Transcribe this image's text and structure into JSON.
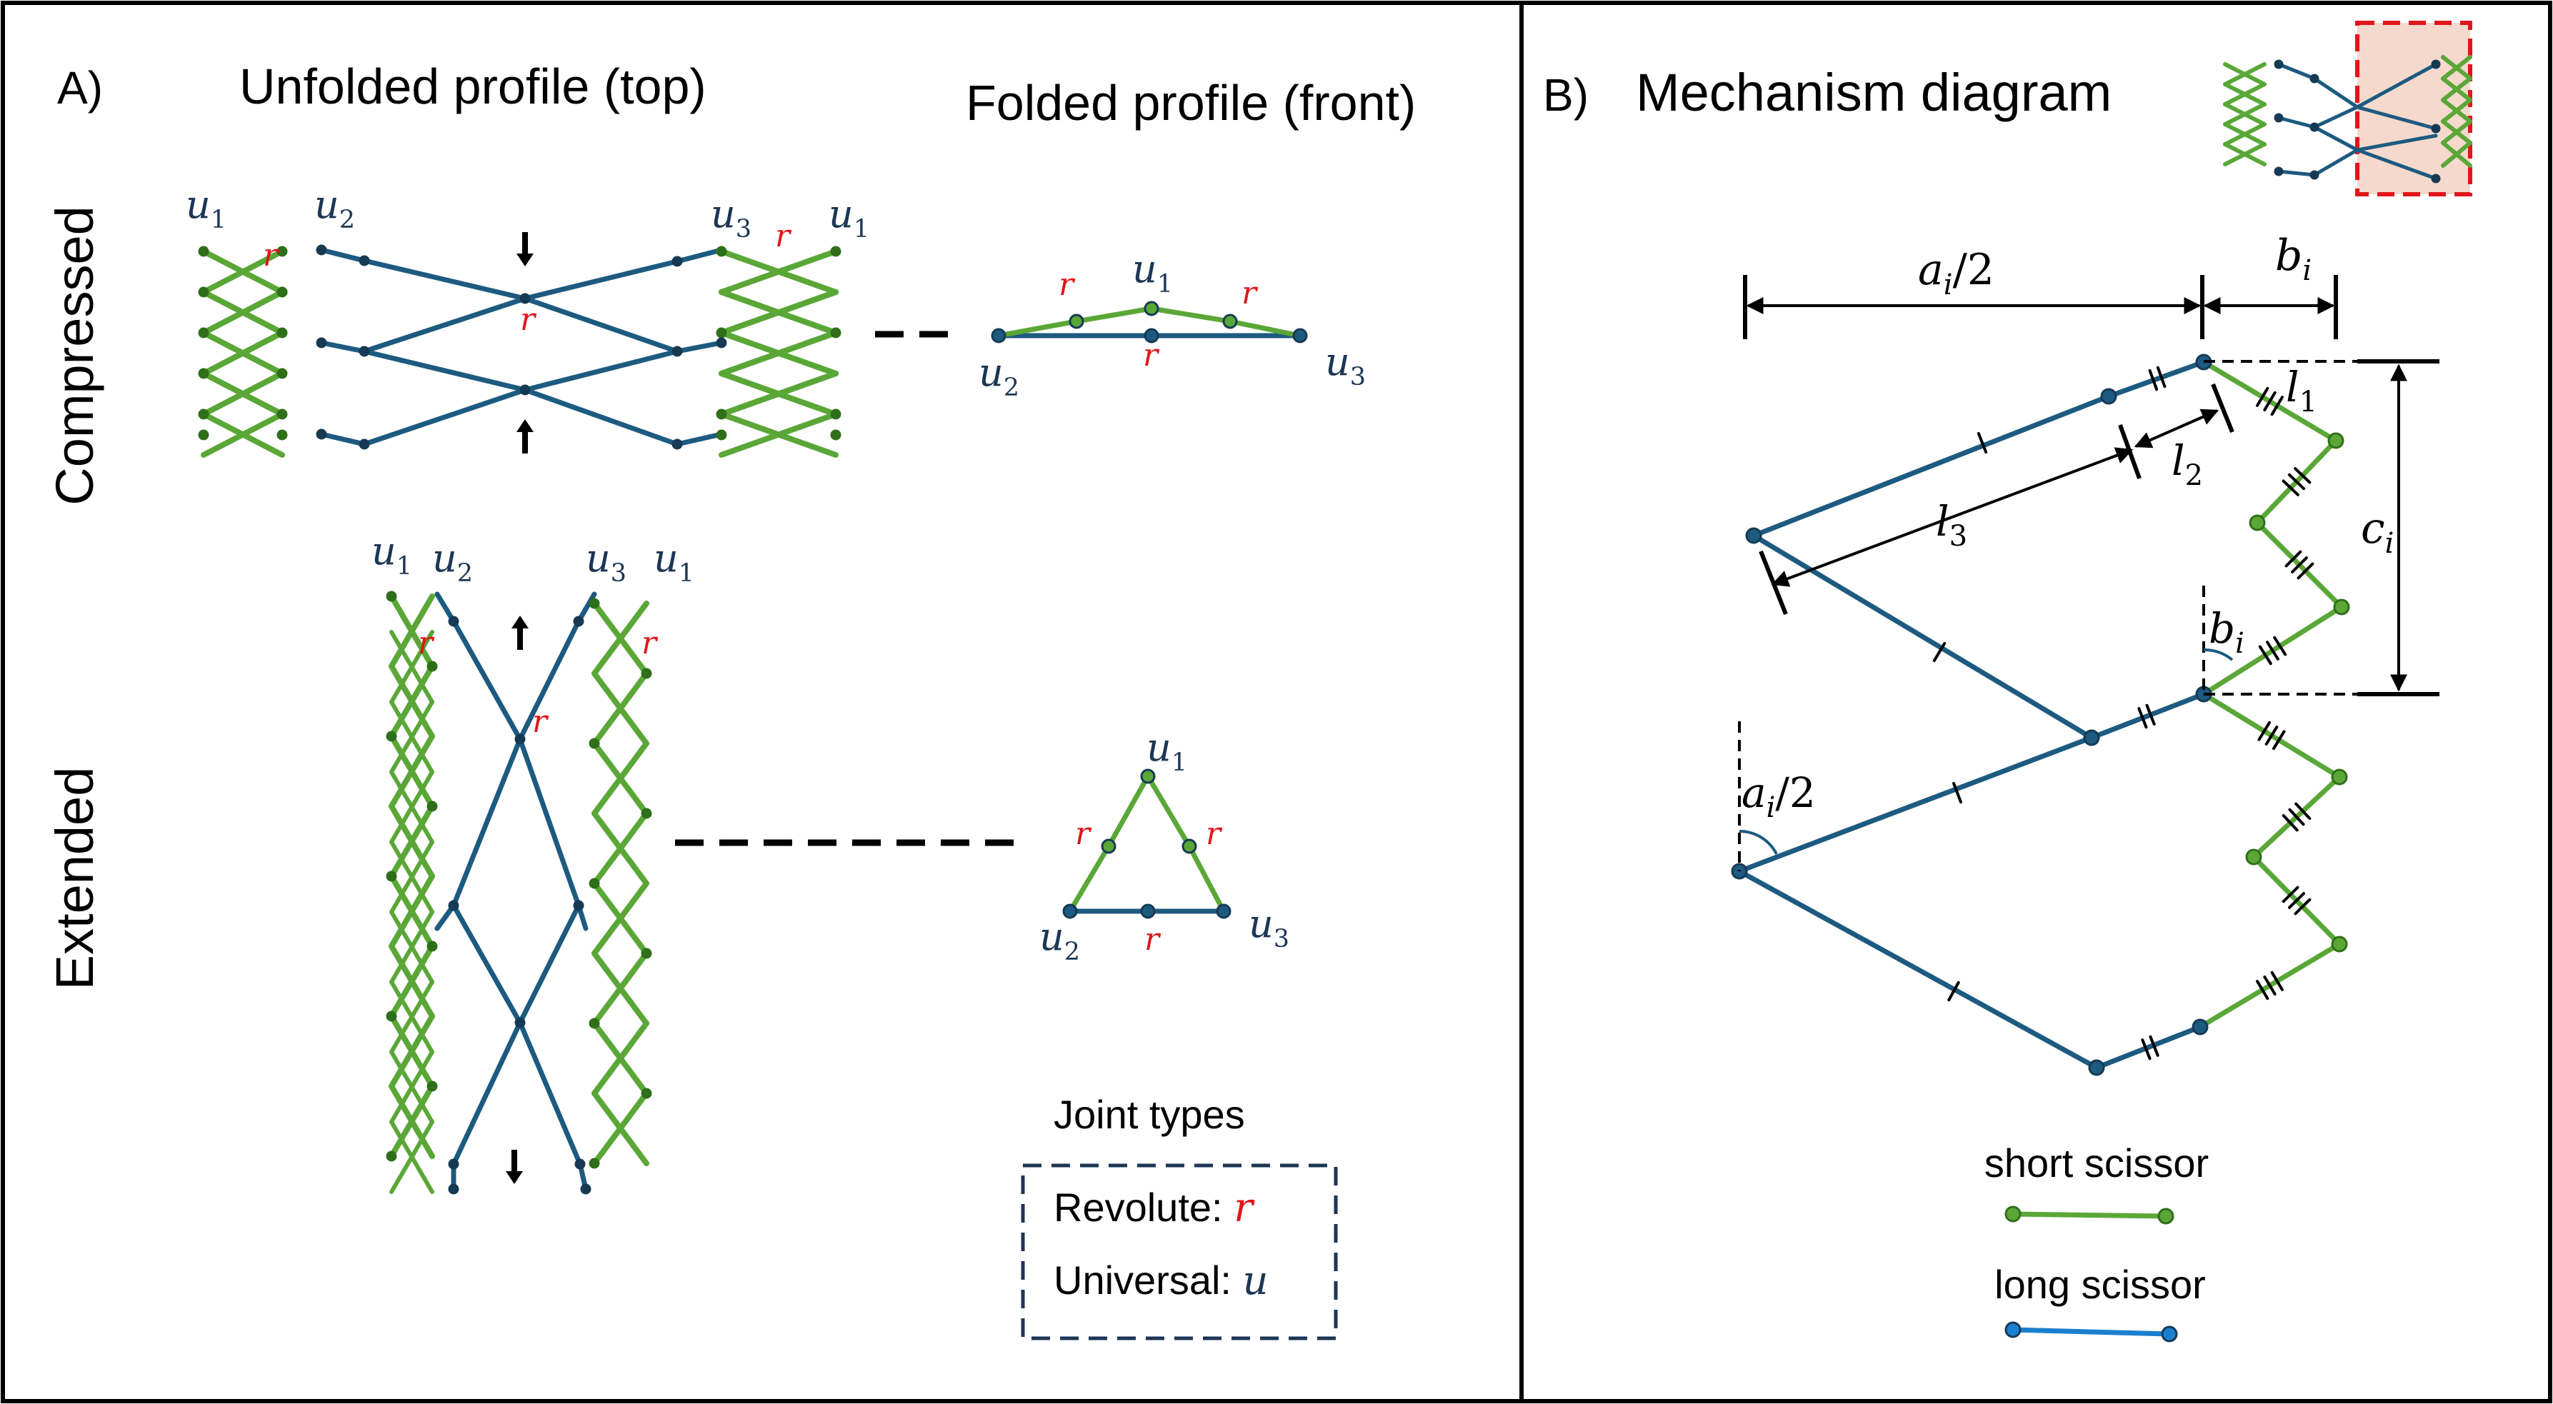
{
  "colors": {
    "green": "#5aa737",
    "green_dark": "#2f6f1a",
    "blue": "#1d5a80",
    "blue_dark": "#163a54",
    "red": "#e0161a",
    "highlight_fill": "#f5d9cd",
    "black": "#000000",
    "label_blue": "#1c3655"
  },
  "panel_a": {
    "letter": "A)",
    "unfolded_title": "Unfolded profile (top)",
    "folded_title": "Folded profile (front)",
    "row_compressed": "Compressed",
    "row_extended": "Extended",
    "labels": {
      "r": "r",
      "u": "u",
      "s1": "1",
      "s2": "2",
      "s3": "3"
    },
    "legend": {
      "title": "Joint types",
      "revolute": "Revolute: ",
      "revolute_sym": "r",
      "universal": "Universal: ",
      "universal_sym": "u"
    }
  },
  "panel_b": {
    "letter": "B)",
    "title": "Mechanism diagram",
    "dims": {
      "a_half": {
        "sym": "a",
        "sub": "i",
        "tail": "/2"
      },
      "b": {
        "sym": "b",
        "sub": "i"
      },
      "c": {
        "sym": "c",
        "sub": "i"
      },
      "l1": {
        "sym": "l",
        "sub": "1"
      },
      "l2": {
        "sym": "l",
        "sub": "2"
      },
      "l3": {
        "sym": "l",
        "sub": "3"
      }
    },
    "legend": {
      "short": "short scissor",
      "long": "long scissor"
    }
  }
}
